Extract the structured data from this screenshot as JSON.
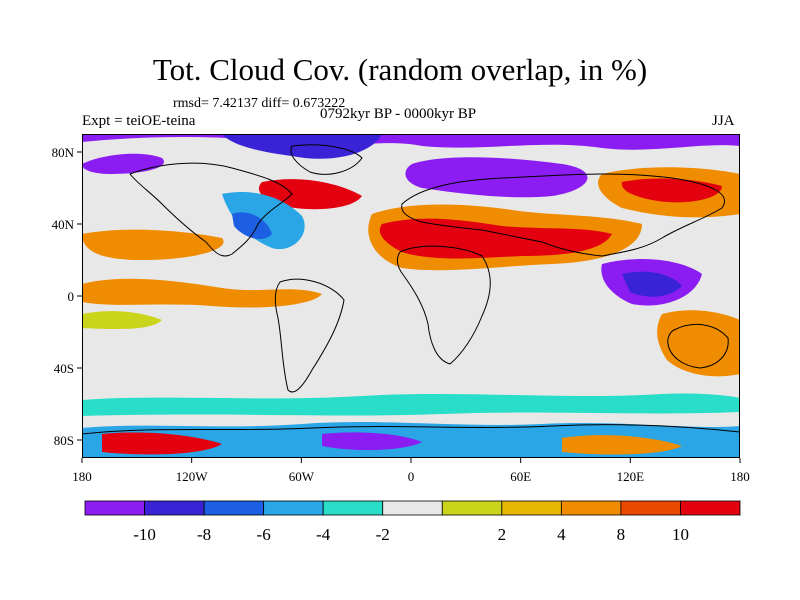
{
  "figure": {
    "title": "Tot. Cloud Cov. (random overlap, in %)",
    "stats": "rmsd= 7.42137 diff= 0.673222",
    "experiment": "Expt = teiOE-teina",
    "period": "0792kyr BP - 0000kyr BP",
    "season": "JJA"
  },
  "map": {
    "projection": "cylindrical-equidistant",
    "lon_range": [
      -180,
      180
    ],
    "lat_range": [
      -90,
      90
    ],
    "coastlines": true,
    "lat_ticks": [
      {
        "value": 80,
        "label": "80N"
      },
      {
        "value": 40,
        "label": "40N"
      },
      {
        "value": 0,
        "label": "0"
      },
      {
        "value": -40,
        "label": "40S"
      },
      {
        "value": -80,
        "label": "80S"
      }
    ],
    "lon_ticks": [
      {
        "value": -180,
        "label": "180"
      },
      {
        "value": -120,
        "label": "120W"
      },
      {
        "value": -60,
        "label": "60W"
      },
      {
        "value": 0,
        "label": "0"
      },
      {
        "value": 60,
        "label": "60E"
      },
      {
        "value": 120,
        "label": "120E"
      },
      {
        "value": 180,
        "label": "180"
      }
    ]
  },
  "colorbar": {
    "colors": [
      "#8b1cf2",
      "#3a23d6",
      "#1c5fe3",
      "#2aa6e6",
      "#28dec8",
      "#e8e8e8",
      "#c9d41a",
      "#e6b800",
      "#f08c00",
      "#ea4800",
      "#e3000f"
    ],
    "labels": [
      "-10",
      "-8",
      "-6",
      "-4",
      "-2",
      "2",
      "4",
      "8",
      "10"
    ]
  }
}
